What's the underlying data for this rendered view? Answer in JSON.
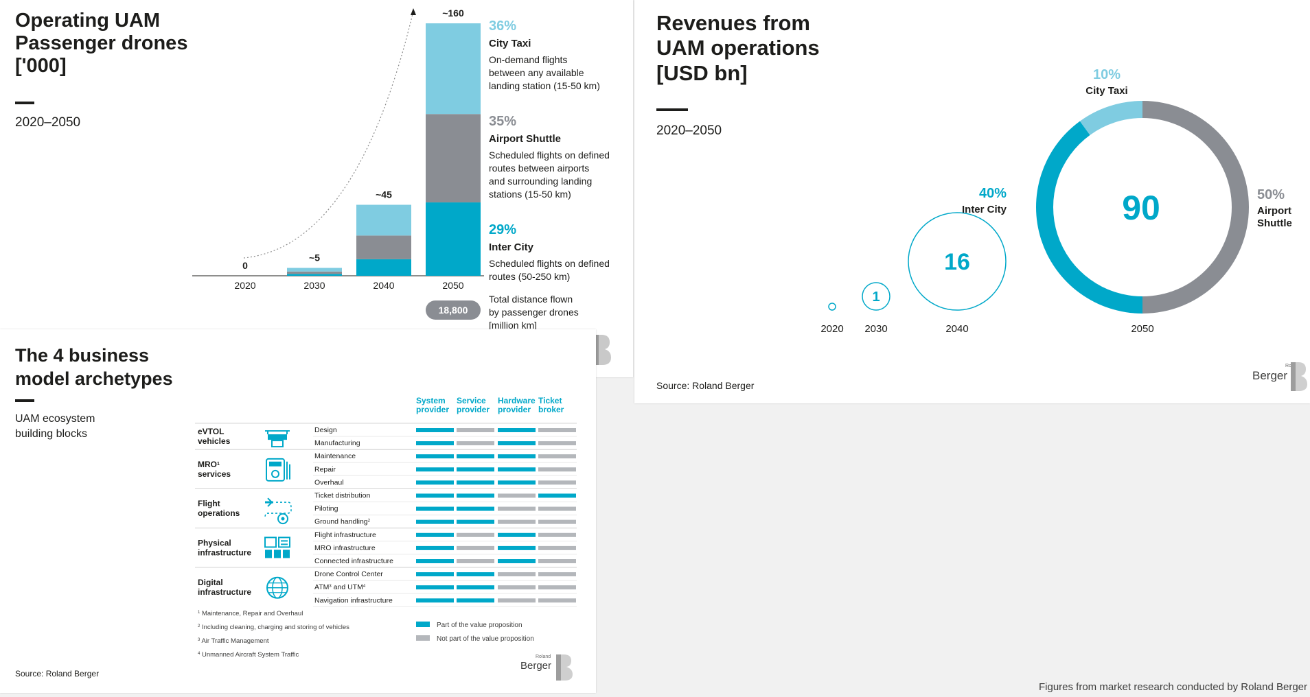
{
  "colors": {
    "teal": "#00a8c9",
    "light_blue": "#7fcce1",
    "gray": "#8a8d93",
    "light_gray": "#b4b7bb",
    "dark": "#1d1d1b"
  },
  "footer_note": "Figures from market research conducted by Roland Berger",
  "logo": {
    "small": "Roland",
    "name": "Berger"
  },
  "drones": {
    "title_lines": [
      "Operating UAM",
      "Passenger drones",
      "['000]"
    ],
    "period": "2020–2050",
    "total_badge": "18,800",
    "total_text_lines": [
      "Total distance flown",
      "by passenger drones",
      "[million km]"
    ],
    "legend": [
      {
        "pct": "36%",
        "name": "City Taxi",
        "desc_lines": [
          "On-demand flights",
          "between any available",
          "landing station (15-50 km)"
        ],
        "color": "light_blue"
      },
      {
        "pct": "35%",
        "name": "Airport Shuttle",
        "desc_lines": [
          "Scheduled flights on defined",
          "routes between airports",
          "and surrounding landing",
          "stations (15-50 km)"
        ],
        "color": "gray"
      },
      {
        "pct": "29%",
        "name": "Inter City",
        "desc_lines": [
          "Scheduled flights on defined",
          "routes (50-250 km)"
        ],
        "color": "teal"
      }
    ]
  },
  "chart_data": [
    {
      "type": "bar",
      "title": "Operating UAM Passenger drones ['000]",
      "subtitle": "2020–2050",
      "categories": [
        "2020",
        "2030",
        "2040",
        "2050"
      ],
      "total_labels": [
        "0",
        "~5",
        "~45",
        "~160"
      ],
      "totals": [
        0,
        5,
        45,
        160
      ],
      "series": [
        {
          "name": "Inter City",
          "color": "teal",
          "values": [
            0,
            1.2,
            10.5,
            46.5
          ]
        },
        {
          "name": "Airport Shuttle",
          "color": "gray",
          "values": [
            0,
            1.5,
            15,
            56
          ]
        },
        {
          "name": "City Taxi",
          "color": "light_blue",
          "values": [
            0,
            2.3,
            19.5,
            57.5
          ]
        }
      ],
      "stacked": true,
      "ylim": [
        0,
        160
      ]
    },
    {
      "type": "pie",
      "title": "Revenues from UAM operations [USD bn]",
      "subtitle": "2020–2050",
      "bubbles": [
        {
          "year": "2020",
          "value": 0,
          "label": ""
        },
        {
          "year": "2030",
          "value": 1,
          "label": "1"
        },
        {
          "year": "2040",
          "value": 16,
          "label": "16"
        },
        {
          "year": "2050",
          "value": 90,
          "label": "90"
        }
      ],
      "donut_2050": [
        {
          "name": "City Taxi",
          "pct": 10,
          "label": "10%",
          "color": "light_blue"
        },
        {
          "name": "Airport Shuttle",
          "pct": 50,
          "label": "50%",
          "name_lines": [
            "Airport",
            "Shuttle"
          ],
          "color": "gray"
        },
        {
          "name": "Inter City",
          "pct": 40,
          "label": "40%",
          "color": "teal"
        }
      ],
      "source": "Source: Roland Berger"
    },
    {
      "type": "table",
      "title": "The 4 business model archetypes",
      "subtitle_lines": [
        "UAM ecosystem",
        "building blocks"
      ],
      "columns": [
        {
          "lines": [
            "System",
            "provider"
          ]
        },
        {
          "lines": [
            "Service",
            "provider"
          ]
        },
        {
          "lines": [
            "Hardware",
            "provider"
          ]
        },
        {
          "lines": [
            "Ticket",
            "broker"
          ]
        }
      ],
      "groups": [
        {
          "lines": [
            "eVTOL",
            "vehicles"
          ],
          "sup": "",
          "icon": "drone-icon",
          "rows": [
            {
              "name": "Design",
              "sup": "",
              "cells": [
                1,
                0,
                1,
                0
              ]
            },
            {
              "name": "Manufacturing",
              "sup": "",
              "cells": [
                1,
                0,
                1,
                0
              ]
            }
          ]
        },
        {
          "lines": [
            "MRO",
            "services"
          ],
          "sup": "1",
          "icon": "mro-tools-icon",
          "rows": [
            {
              "name": "Maintenance",
              "sup": "",
              "cells": [
                1,
                1,
                1,
                0
              ]
            },
            {
              "name": "Repair",
              "sup": "",
              "cells": [
                1,
                1,
                1,
                0
              ]
            },
            {
              "name": "Overhaul",
              "sup": "",
              "cells": [
                1,
                1,
                1,
                0
              ]
            }
          ]
        },
        {
          "lines": [
            "Flight",
            "operations"
          ],
          "sup": "",
          "icon": "flight-route-icon",
          "rows": [
            {
              "name": "Ticket distribution",
              "sup": "",
              "cells": [
                1,
                1,
                0,
                1
              ]
            },
            {
              "name": "Piloting",
              "sup": "",
              "cells": [
                1,
                1,
                0,
                0
              ]
            },
            {
              "name": "Ground handling",
              "sup": "2",
              "cells": [
                1,
                1,
                0,
                0
              ]
            }
          ]
        },
        {
          "lines": [
            "Physical",
            "infrastructure"
          ],
          "sup": "",
          "icon": "infrastructure-icon",
          "rows": [
            {
              "name": "Flight infrastructure",
              "sup": "",
              "cells": [
                1,
                0,
                1,
                0
              ]
            },
            {
              "name": "MRO infrastructure",
              "sup": "",
              "cells": [
                1,
                0,
                1,
                0
              ]
            },
            {
              "name": "Connected infrastructure",
              "sup": "",
              "cells": [
                1,
                0,
                1,
                0
              ]
            }
          ]
        },
        {
          "lines": [
            "Digital",
            "infrastructure"
          ],
          "sup": "",
          "icon": "globe-icon",
          "rows": [
            {
              "name": "Drone Control Center",
              "sup": "",
              "cells": [
                1,
                1,
                0,
                0
              ]
            },
            {
              "name": "ATM",
              "sup": "3",
              "suffix": " and UTM",
              "sup2": "4",
              "cells": [
                1,
                1,
                0,
                0
              ]
            },
            {
              "name": "Navigation infrastructure",
              "sup": "",
              "cells": [
                1,
                1,
                0,
                0
              ]
            }
          ]
        }
      ],
      "footnotes": [
        {
          "n": "1",
          "text": "Maintenance, Repair and Overhaul"
        },
        {
          "n": "2",
          "text": "Including cleaning, charging and storing of vehicles"
        },
        {
          "n": "3",
          "text": "Air Traffic Management"
        },
        {
          "n": "4",
          "text": "Unmanned Aircraft System Traffic"
        }
      ],
      "legend": [
        {
          "label": "Part of the value proposition",
          "color": "teal"
        },
        {
          "label": "Not part of the value proposition",
          "color": "light_gray"
        }
      ],
      "source": "Source: Roland Berger"
    }
  ]
}
